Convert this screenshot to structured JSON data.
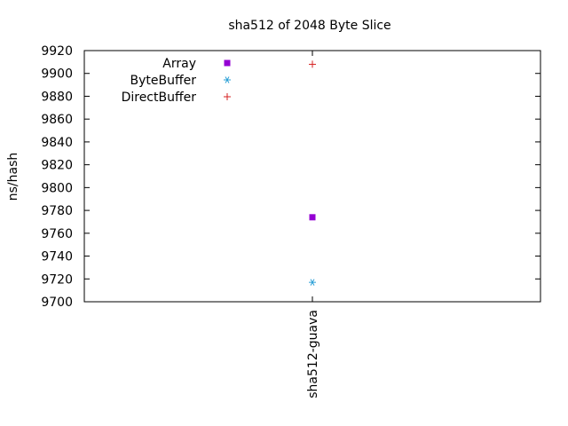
{
  "chart_data": {
    "type": "scatter",
    "title": "sha512 of 2048 Byte Slice",
    "xlabel": "",
    "ylabel": "ns/hash",
    "categories": [
      "sha512-guava"
    ],
    "ylim": [
      9700,
      9920
    ],
    "yticks": [
      9700,
      9720,
      9740,
      9760,
      9780,
      9800,
      9820,
      9840,
      9860,
      9880,
      9900,
      9920
    ],
    "grid": false,
    "legend_position": "top-left",
    "series": [
      {
        "name": "Array",
        "marker": "filled-square",
        "color": "#9400d3",
        "values": [
          9774
        ]
      },
      {
        "name": "ByteBuffer",
        "marker": "asterisk",
        "color": "#2a9fd6",
        "values": [
          9717
        ]
      },
      {
        "name": "DirectBuffer",
        "marker": "plus",
        "color": "#d62020",
        "values": [
          9908
        ]
      }
    ]
  }
}
